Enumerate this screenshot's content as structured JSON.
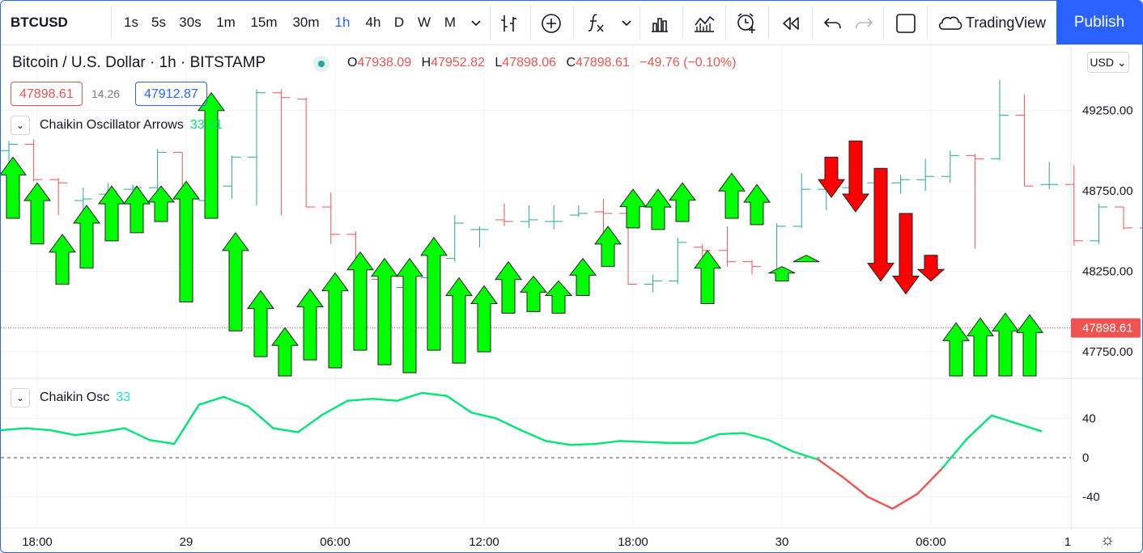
{
  "toolbar": {
    "symbol": "BTCUSD",
    "intervals": [
      "1s",
      "5s",
      "30s",
      "1m",
      "15m",
      "30m",
      "1h",
      "4h",
      "D",
      "W",
      "M"
    ],
    "active_interval": "1h",
    "indicators_icon": "fx-icon",
    "brand": "TradingView",
    "publish_label": "Publish",
    "icons": [
      "chevron-down-icon",
      "bar-style-icon",
      "add-icon",
      "fx-icon",
      "chevron-down-icon",
      "templates-icon",
      "compare-icon",
      "alert-icon",
      "replay-icon",
      "undo-icon",
      "redo-icon",
      "layout-icon",
      "cloud-icon"
    ]
  },
  "legend": {
    "title": "Bitcoin / U.S. Dollar · 1h · BITSTAMP",
    "open_key": "O",
    "open": "47938.09",
    "high_key": "H",
    "high": "47952.82",
    "low_key": "L",
    "low": "47898.06",
    "close_key": "C",
    "close": "47898.61",
    "change": "−49.76 (−0.10%)",
    "bid": "47898.61",
    "spread": "14.26",
    "ask": "47912.87"
  },
  "indicators": {
    "arrows_name": "Chaikin Oscillator Arrows",
    "arrows_value": "33.31",
    "osc_name": "Chaikin Osc",
    "osc_value": "33"
  },
  "price_axis": {
    "currency": "USD"
  },
  "colors": {
    "up": "#26a69a",
    "down": "#ef5350",
    "arrow_up": "#00ff00",
    "arrow_down": "#ff0000",
    "osc_positive": "#00e676",
    "osc_negative": "#ef5350",
    "accent": "#2962ff"
  },
  "chart_data": [
    {
      "type": "ohlc",
      "x_tick_labels": [
        "18:00",
        "29",
        "06:00",
        "12:00",
        "18:00",
        "30",
        "06:00",
        "1"
      ],
      "y_ticks": [
        47750,
        48250,
        48750,
        49250
      ],
      "y_tick_labels": [
        "47750.00",
        "48250.00",
        "48750.00",
        "49250.00"
      ],
      "ylim": [
        47590,
        49650
      ],
      "last_price": 47898.61,
      "last_price_label": "47898.61",
      "bars": [
        {
          "o": 49000,
          "h": 49060,
          "l": 48880,
          "c": 49040
        },
        {
          "o": 49040,
          "h": 49070,
          "l": 48810,
          "c": 48820
        },
        {
          "o": 48820,
          "h": 48830,
          "l": 48600,
          "c": 48800
        },
        {
          "o": 48690,
          "h": 48770,
          "l": 48620,
          "c": 48700
        },
        {
          "o": 48730,
          "h": 48800,
          "l": 48680,
          "c": 48750
        },
        {
          "o": 48760,
          "h": 48790,
          "l": 48700,
          "c": 48770
        },
        {
          "o": 48770,
          "h": 49010,
          "l": 48740,
          "c": 48990
        },
        {
          "o": 48990,
          "h": 48990,
          "l": 48690,
          "c": 48690
        },
        {
          "o": 48690,
          "h": 48790,
          "l": 48670,
          "c": 48780
        },
        {
          "o": 48780,
          "h": 48970,
          "l": 48700,
          "c": 48960
        },
        {
          "o": 48960,
          "h": 49380,
          "l": 48660,
          "c": 49360
        },
        {
          "o": 49360,
          "h": 49380,
          "l": 48600,
          "c": 49330
        },
        {
          "o": 49320,
          "h": 49330,
          "l": 48650,
          "c": 48650
        },
        {
          "o": 48650,
          "h": 48740,
          "l": 48420,
          "c": 48480
        },
        {
          "o": 48480,
          "h": 48500,
          "l": 48160,
          "c": 48200
        },
        {
          "o": 48200,
          "h": 48290,
          "l": 47870,
          "c": 48190
        },
        {
          "o": 48150,
          "h": 48210,
          "l": 48050,
          "c": 48200
        },
        {
          "o": 48210,
          "h": 48360,
          "l": 48170,
          "c": 48340
        },
        {
          "o": 48330,
          "h": 48600,
          "l": 48310,
          "c": 48550
        },
        {
          "o": 48510,
          "h": 48530,
          "l": 48400,
          "c": 48510
        },
        {
          "o": 48570,
          "h": 48670,
          "l": 48530,
          "c": 48560
        },
        {
          "o": 48560,
          "h": 48660,
          "l": 48520,
          "c": 48570
        },
        {
          "o": 48560,
          "h": 48660,
          "l": 48510,
          "c": 48560
        },
        {
          "o": 48600,
          "h": 48660,
          "l": 48590,
          "c": 48610
        },
        {
          "o": 48620,
          "h": 48700,
          "l": 48400,
          "c": 48610
        },
        {
          "o": 48610,
          "h": 48620,
          "l": 48170,
          "c": 48170
        },
        {
          "o": 48170,
          "h": 48230,
          "l": 48120,
          "c": 48190
        },
        {
          "o": 48190,
          "h": 48460,
          "l": 48170,
          "c": 48430
        },
        {
          "o": 48400,
          "h": 48420,
          "l": 48260,
          "c": 48380
        },
        {
          "o": 48380,
          "h": 48530,
          "l": 48280,
          "c": 48310
        },
        {
          "o": 48310,
          "h": 48320,
          "l": 48230,
          "c": 48280
        },
        {
          "o": 48240,
          "h": 48550,
          "l": 48220,
          "c": 48530
        },
        {
          "o": 48530,
          "h": 48860,
          "l": 48520,
          "c": 48760
        },
        {
          "o": 48760,
          "h": 48770,
          "l": 48630,
          "c": 48760
        },
        {
          "o": 48770,
          "h": 48810,
          "l": 48720,
          "c": 48800
        },
        {
          "o": 48800,
          "h": 48810,
          "l": 48740,
          "c": 48800
        },
        {
          "o": 48800,
          "h": 48850,
          "l": 48730,
          "c": 48820
        },
        {
          "o": 48820,
          "h": 48950,
          "l": 48750,
          "c": 48840
        },
        {
          "o": 48840,
          "h": 49000,
          "l": 48800,
          "c": 48970
        },
        {
          "o": 48970,
          "h": 48980,
          "l": 48390,
          "c": 48950
        },
        {
          "o": 48950,
          "h": 49440,
          "l": 48940,
          "c": 49220
        },
        {
          "o": 49220,
          "h": 49350,
          "l": 48780,
          "c": 48780
        },
        {
          "o": 48790,
          "h": 48930,
          "l": 48760,
          "c": 48790
        },
        {
          "o": 48790,
          "h": 48910,
          "l": 48410,
          "c": 48440
        },
        {
          "o": 48440,
          "h": 48670,
          "l": 48420,
          "c": 48650
        },
        {
          "o": 48650,
          "h": 48650,
          "l": 48510,
          "c": 48520
        },
        {
          "o": 48520,
          "h": 48540,
          "l": 48430,
          "c": 48430
        },
        {
          "o": 48430,
          "h": 48440,
          "l": 47930,
          "c": 47980
        },
        {
          "o": 47980,
          "h": 48040,
          "l": 47810,
          "c": 47960
        },
        {
          "o": 47940,
          "h": 48100,
          "l": 47850,
          "c": 48100
        },
        {
          "o": 48100,
          "h": 48110,
          "l": 47880,
          "c": 48090
        },
        {
          "o": 48090,
          "h": 48160,
          "l": 47700,
          "c": 48010
        },
        {
          "o": 48010,
          "h": 48040,
          "l": 47980,
          "c": 48010
        },
        {
          "o": 48010,
          "h": 48020,
          "l": 47850,
          "c": 47900
        },
        {
          "o": 47900,
          "h": 48200,
          "l": 47890,
          "c": 48150
        },
        {
          "o": 48150,
          "h": 48150,
          "l": 47900,
          "c": 47960
        },
        {
          "o": 47960,
          "h": 47980,
          "l": 47930,
          "c": 47938
        },
        {
          "o": 47938,
          "h": 47952,
          "l": 47898,
          "c": 47898
        }
      ]
    },
    {
      "type": "arrows",
      "series": [
        {
          "dir": "up",
          "top": 48960,
          "bottom": 48580
        },
        {
          "dir": "up",
          "top": 48800,
          "bottom": 48420
        },
        {
          "dir": "up",
          "top": 48480,
          "bottom": 48170
        },
        {
          "dir": "up",
          "top": 48660,
          "bottom": 48270
        },
        {
          "dir": "up",
          "top": 48780,
          "bottom": 48440
        },
        {
          "dir": "up",
          "top": 48780,
          "bottom": 48490
        },
        {
          "dir": "up",
          "top": 48780,
          "bottom": 48560
        },
        {
          "dir": "up",
          "top": 48810,
          "bottom": 48060
        },
        {
          "dir": "up",
          "top": 49360,
          "bottom": 48580
        },
        {
          "dir": "up",
          "top": 48490,
          "bottom": 47880
        },
        {
          "dir": "up",
          "top": 48130,
          "bottom": 47720
        },
        {
          "dir": "up",
          "top": 47900,
          "bottom": 47600
        },
        {
          "dir": "up",
          "top": 48140,
          "bottom": 47700
        },
        {
          "dir": "up",
          "top": 48240,
          "bottom": 47650
        },
        {
          "dir": "up",
          "top": 48370,
          "bottom": 47760
        },
        {
          "dir": "up",
          "top": 48330,
          "bottom": 47670
        },
        {
          "dir": "up",
          "top": 48330,
          "bottom": 47620
        },
        {
          "dir": "up",
          "top": 48460,
          "bottom": 47760
        },
        {
          "dir": "up",
          "top": 48210,
          "bottom": 47680
        },
        {
          "dir": "up",
          "top": 48160,
          "bottom": 47750
        },
        {
          "dir": "up",
          "top": 48310,
          "bottom": 47990
        },
        {
          "dir": "up",
          "top": 48220,
          "bottom": 48000
        },
        {
          "dir": "up",
          "top": 48190,
          "bottom": 47990
        },
        {
          "dir": "up",
          "top": 48330,
          "bottom": 48100
        },
        {
          "dir": "up",
          "top": 48530,
          "bottom": 48280
        },
        {
          "dir": "up",
          "top": 48760,
          "bottom": 48520
        },
        {
          "dir": "up",
          "top": 48760,
          "bottom": 48510
        },
        {
          "dir": "up",
          "top": 48800,
          "bottom": 48560
        },
        {
          "dir": "up",
          "top": 48380,
          "bottom": 48050
        },
        {
          "dir": "up",
          "top": 48860,
          "bottom": 48580
        },
        {
          "dir": "up",
          "top": 48790,
          "bottom": 48540
        },
        {
          "dir": "up",
          "top": 48280,
          "bottom": 48190
        },
        {
          "dir": "up",
          "top": 48350,
          "bottom": 48310
        },
        {
          "dir": "down",
          "top": 48960,
          "bottom": 48710
        },
        {
          "dir": "down",
          "top": 49060,
          "bottom": 48620
        },
        {
          "dir": "down",
          "top": 48890,
          "bottom": 48190
        },
        {
          "dir": "down",
          "top": 48610,
          "bottom": 48110
        },
        {
          "dir": "down",
          "top": 48350,
          "bottom": 48190
        },
        {
          "dir": "up",
          "top": 47930,
          "bottom": 47600
        },
        {
          "dir": "up",
          "top": 47960,
          "bottom": 47600
        },
        {
          "dir": "up",
          "top": 47990,
          "bottom": 47600
        },
        {
          "dir": "up",
          "top": 47980,
          "bottom": 47600
        }
      ]
    },
    {
      "type": "line",
      "y_ticks": [
        40,
        0,
        -40
      ],
      "y_tick_labels": [
        "40",
        "0",
        "-40"
      ],
      "ylim": [
        -70,
        80
      ],
      "series": [
        {
          "values": [
            28,
            30,
            28,
            23,
            26,
            30,
            18,
            14,
            54,
            62,
            52,
            30,
            26,
            44,
            58,
            60,
            58,
            66,
            63,
            46,
            40,
            28,
            17,
            13,
            14,
            17,
            16,
            15,
            15,
            24,
            25,
            18,
            6,
            -2,
            -20,
            -40,
            -52,
            -37,
            -11,
            19,
            43,
            35,
            27
          ]
        }
      ]
    }
  ]
}
